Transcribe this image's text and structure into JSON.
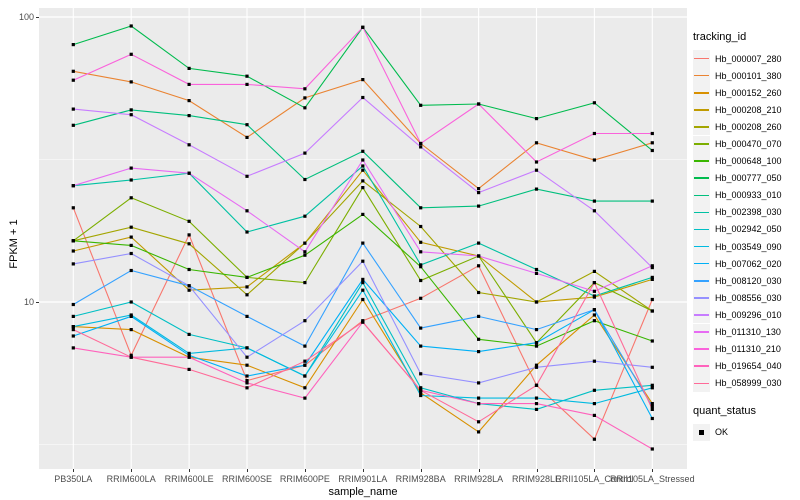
{
  "figure": {
    "y_axis": {
      "title": "FPKM + 1",
      "tick_top": "100",
      "tick_bottom": "10"
    },
    "x_axis": {
      "title": "sample_name"
    },
    "legend": {
      "tracking_title": "tracking_id",
      "quant_title": "quant_status",
      "quant_label": "OK",
      "quant_marker": "black-square"
    }
  },
  "chart_data": {
    "type": "line",
    "title": "",
    "xlabel": "sample_name",
    "ylabel": "FPKM + 1",
    "y_scale": "log10",
    "ylim": [
      2.6,
      107
    ],
    "y_major_gridlines": [
      10,
      100
    ],
    "y_minor_gridlines": [
      3.162,
      31.62
    ],
    "panel_bg": "#EBEBEB",
    "gridline_color": "#FFFFFF",
    "point_marker": "small black square",
    "legend_position": "right",
    "x_categories": [
      "PB350LA",
      "RRIM600LA",
      "RRIM600LE",
      "RRIM600SE",
      "RRIM600PE",
      "RRIM901LA",
      "RRIM928BA",
      "RRIM928LA",
      "RRIM928LE",
      "RRII105LA_Control",
      "RRII105LA_Stressed"
    ],
    "series": [
      {
        "name": "Hb_000007_280",
        "color": "#F8766D",
        "values": [
          21.4,
          6.5,
          17.2,
          5.3,
          6.0,
          8.6,
          10.3,
          13.4,
          5.1,
          3.3,
          10.2
        ]
      },
      {
        "name": "Hb_000101_380",
        "color": "#EA8331",
        "values": [
          64.5,
          59.2,
          50.9,
          37.8,
          52.0,
          60.3,
          36.0,
          25.0,
          36.2,
          31.5,
          36.2
        ]
      },
      {
        "name": "Hb_000152_260",
        "color": "#D89000",
        "values": [
          8.2,
          8.0,
          6.4,
          6.0,
          5.0,
          10.2,
          4.8,
          3.5,
          6.0,
          9.0,
          4.4
        ]
      },
      {
        "name": "Hb_000208_210",
        "color": "#C09B00",
        "values": [
          15.1,
          16.9,
          11.0,
          11.3,
          16.1,
          29.0,
          16.2,
          14.5,
          10.0,
          10.4,
          12.0
        ]
      },
      {
        "name": "Hb_000208_260",
        "color": "#A3A500",
        "values": [
          16.4,
          18.3,
          16.0,
          10.6,
          16.1,
          26.6,
          18.4,
          10.8,
          10.0,
          12.8,
          9.3
        ]
      },
      {
        "name": "Hb_000470_070",
        "color": "#7CAE00",
        "values": [
          16.4,
          23.2,
          19.2,
          12.2,
          11.7,
          25.2,
          11.9,
          14.5,
          7.2,
          11.7,
          9.3
        ]
      },
      {
        "name": "Hb_000648_100",
        "color": "#39B600",
        "values": [
          16.4,
          15.8,
          13.0,
          12.2,
          14.6,
          20.3,
          13.3,
          7.4,
          7.0,
          8.6,
          7.3
        ]
      },
      {
        "name": "Hb_000777_050",
        "color": "#00BB4E",
        "values": [
          80.0,
          93.0,
          66.0,
          62.0,
          48.0,
          92.0,
          49.0,
          49.5,
          44.0,
          50.0,
          34.0
        ]
      },
      {
        "name": "Hb_000933_010",
        "color": "#00BF7D",
        "values": [
          41.7,
          47.2,
          45.1,
          41.9,
          26.9,
          33.8,
          21.4,
          21.7,
          24.9,
          22.6,
          22.6
        ]
      },
      {
        "name": "Hb_002398_030",
        "color": "#00C1A3",
        "values": [
          25.6,
          26.8,
          28.3,
          17.6,
          20.0,
          30.0,
          13.5,
          16.1,
          13.0,
          10.5,
          12.2
        ]
      },
      {
        "name": "Hb_002942_050",
        "color": "#00BFC4",
        "values": [
          8.9,
          10.0,
          7.7,
          6.9,
          5.5,
          11.7,
          5.0,
          4.4,
          4.2,
          4.9,
          5.1
        ]
      },
      {
        "name": "Hb_003549_090",
        "color": "#00BAE0",
        "values": [
          8.2,
          9.0,
          6.6,
          6.9,
          5.5,
          11.0,
          4.7,
          4.6,
          4.6,
          4.4,
          5.0
        ]
      },
      {
        "name": "Hb_007062_020",
        "color": "#00B0F6",
        "values": [
          7.6,
          8.9,
          6.5,
          5.5,
          6.0,
          12.0,
          7.0,
          6.7,
          7.2,
          9.4,
          3.9
        ]
      },
      {
        "name": "Hb_008120_030",
        "color": "#35A2FF",
        "values": [
          9.8,
          12.9,
          11.4,
          8.9,
          7.0,
          16.1,
          8.1,
          8.9,
          8.0,
          9.4,
          4.3
        ]
      },
      {
        "name": "Hb_008556_030",
        "color": "#9590FF",
        "values": [
          13.6,
          14.8,
          11.4,
          6.4,
          8.6,
          13.9,
          5.6,
          5.2,
          5.9,
          6.2,
          5.9
        ]
      },
      {
        "name": "Hb_009296_010",
        "color": "#C77CFF",
        "values": [
          47.5,
          45.4,
          35.6,
          27.6,
          33.3,
          52.2,
          35.0,
          24.2,
          29.0,
          20.9,
          13.2
        ]
      },
      {
        "name": "Hb_011310_130",
        "color": "#E76BF3",
        "values": [
          25.6,
          29.5,
          28.3,
          20.9,
          15.0,
          31.5,
          15.0,
          14.5,
          12.6,
          10.9,
          13.4
        ]
      },
      {
        "name": "Hb_011310_210",
        "color": "#FA62DB",
        "values": [
          60.0,
          74.0,
          58.0,
          58.0,
          56.0,
          92.0,
          36.0,
          49.5,
          31.0,
          39.0,
          39.0
        ]
      },
      {
        "name": "Hb_019654_040",
        "color": "#FF62BC",
        "values": [
          6.9,
          6.4,
          6.4,
          5.2,
          4.6,
          8.5,
          4.9,
          4.4,
          4.4,
          4.0,
          3.05
        ]
      },
      {
        "name": "Hb_058999_030",
        "color": "#FF6A98",
        "values": [
          8.0,
          6.4,
          5.8,
          5.0,
          6.2,
          8.5,
          4.9,
          3.8,
          5.1,
          11.7,
          4.2
        ]
      }
    ]
  }
}
